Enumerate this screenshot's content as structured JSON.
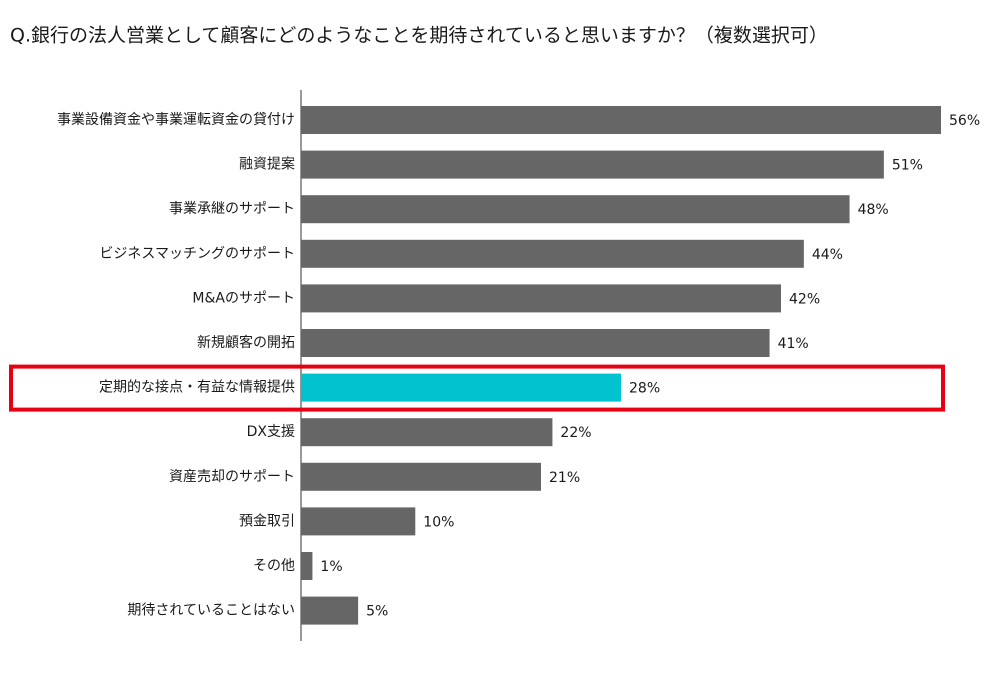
{
  "chart_data": {
    "type": "bar",
    "orientation": "horizontal",
    "title": "Q.銀行の法人営業として顧客にどのようなことを期待されていると思いますか？（複数選択可）",
    "categories": [
      "事業設備資金や事業運転資金の貸付け",
      "融資提案",
      "事業承継のサポート",
      "ビジネスマッチングのサポート",
      "M&Aのサポート",
      "新規顧客の開拓",
      "定期的な接点・有益な情報提供",
      "DX支援",
      "資産売却のサポート",
      "預金取引",
      "その他",
      "期待されていることはない"
    ],
    "values": [
      56,
      51,
      48,
      44,
      42,
      41,
      28,
      22,
      21,
      10,
      1,
      5
    ],
    "value_labels": [
      "56%",
      "51%",
      "48%",
      "44%",
      "42%",
      "41%",
      "28%",
      "22%",
      "21%",
      "10%",
      "1%",
      "5%"
    ],
    "colors": [
      "#666666",
      "#666666",
      "#666666",
      "#666666",
      "#666666",
      "#666666",
      "#00c3cf",
      "#666666",
      "#666666",
      "#666666",
      "#666666",
      "#666666"
    ],
    "highlight_box": {
      "index": 6,
      "color": "#e60012"
    },
    "xlim": [
      0,
      56
    ]
  }
}
